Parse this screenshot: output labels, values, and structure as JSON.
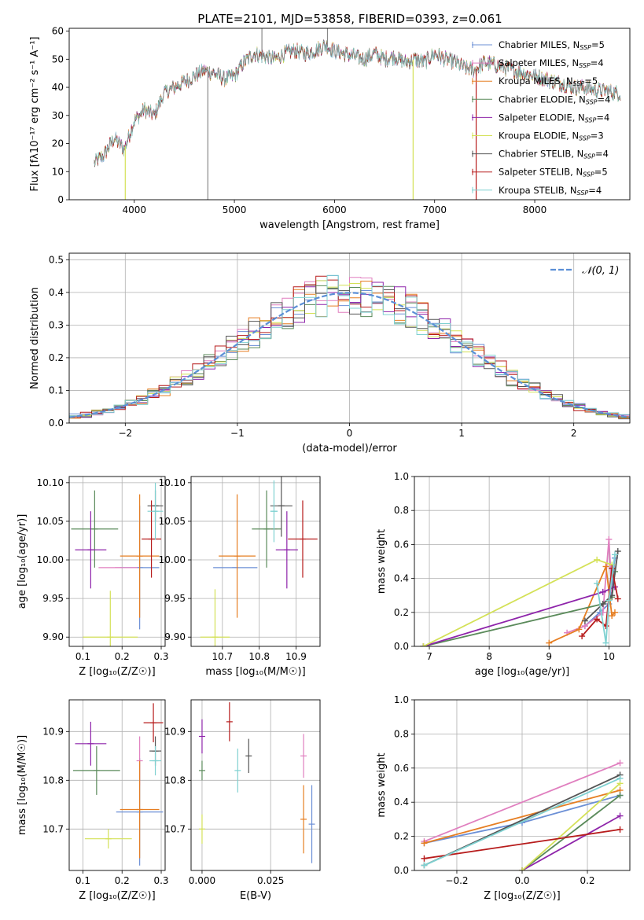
{
  "figure_title": "PLATE=2101, MJD=53858, FIBERID=0393, z=0.061",
  "colors": {
    "Chabrier MILES": "#6b8fd6",
    "Salpeter MILES": "#e07fbf",
    "Kroupa MILES": "#e67e22",
    "Chabrier ELODIE": "#5a8a5a",
    "Salpeter ELODIE": "#8e24aa",
    "Kroupa ELODIE": "#d4e157",
    "Chabrier STELIB": "#555555",
    "Salpeter STELIB": "#b71c1c",
    "Kroupa STELIB": "#7fd1d1",
    "gaussian": "#5b8fd6",
    "grid": "#b0b0b0"
  },
  "chart_data": [
    {
      "id": "spectrum",
      "type": "line",
      "title": "PLATE=2101, MJD=53858, FIBERID=0393, z=0.061",
      "xlabel": "wavelength [Angstrom, rest frame]",
      "ylabel": "Flux [fλ10⁻¹⁷ erg cm⁻² s⁻¹ A⁻¹]",
      "xlim": [
        3350,
        8950
      ],
      "ylim": [
        0,
        61
      ],
      "xticks": [
        4000,
        5000,
        6000,
        7000,
        8000
      ],
      "yticks": [
        0,
        10,
        20,
        30,
        40,
        50,
        60
      ],
      "grid": false,
      "legend": "top-right",
      "spectrum_anchor_x": [
        3600,
        3700,
        3800,
        3900,
        4000,
        4100,
        4200,
        4300,
        4400,
        4500,
        4600,
        4700,
        4800,
        4900,
        5000,
        5100,
        5200,
        5300,
        5400,
        5500,
        5600,
        5700,
        5800,
        5900,
        6000,
        6100,
        6200,
        6300,
        6400,
        6500,
        6600,
        6700,
        6800,
        6900,
        7000,
        7100,
        7200,
        7300,
        7400,
        7500,
        7600,
        7700,
        7800,
        7900,
        8000,
        8100,
        8200,
        8300,
        8400,
        8500,
        8600,
        8700,
        8800,
        8860
      ],
      "spectrum_anchor_y": [
        13,
        16,
        22,
        18,
        28,
        32,
        30,
        38,
        40,
        42,
        44,
        46,
        45,
        43,
        44,
        49,
        52,
        51,
        50,
        52,
        53,
        52,
        53,
        55,
        53,
        52,
        51,
        50,
        52,
        50,
        51,
        49,
        50,
        49,
        52,
        50,
        49,
        47,
        46,
        49,
        48,
        47,
        46,
        45,
        44,
        43,
        42,
        41,
        40,
        40,
        39,
        39,
        38,
        38
      ],
      "spikes": [
        {
          "x": 4735,
          "color": "#888888"
        },
        {
          "x": 5275,
          "color": "#888888",
          "up": true
        },
        {
          "x": 5930,
          "color": "#888888",
          "up": true
        },
        {
          "x": 6785,
          "color": "#d4e157"
        },
        {
          "x": 7415,
          "color": "#b71c1c"
        },
        {
          "x": 3910,
          "color": "#d4e157"
        }
      ],
      "series": [
        {
          "name": "Chabrier MILES, N_SSP=5",
          "label": "Chabrier MILES, N",
          "sub": "SSP",
          "tail": "=5",
          "key": "Chabrier MILES"
        },
        {
          "name": "Salpeter MILES, N_SSP=4",
          "label": "Salpeter MILES, N",
          "sub": "SSP",
          "tail": "=4",
          "key": "Salpeter MILES"
        },
        {
          "name": "Kroupa MILES, N_SSP=5",
          "label": "Kroupa MILES, N",
          "sub": "SSP",
          "tail": "=5",
          "key": "Kroupa MILES"
        },
        {
          "name": "Chabrier ELODIE, N_SSP=4",
          "label": "Chabrier ELODIE, N",
          "sub": "SSP",
          "tail": "=4",
          "key": "Chabrier ELODIE"
        },
        {
          "name": "Salpeter ELODIE, N_SSP=4",
          "label": "Salpeter ELODIE, N",
          "sub": "SSP",
          "tail": "=4",
          "key": "Salpeter ELODIE"
        },
        {
          "name": "Kroupa ELODIE, N_SSP=3",
          "label": "Kroupa ELODIE, N",
          "sub": "SSP",
          "tail": "=3",
          "key": "Kroupa ELODIE"
        },
        {
          "name": "Chabrier STELIB, N_SSP=4",
          "label": "Chabrier STELIB, N",
          "sub": "SSP",
          "tail": "=4",
          "key": "Chabrier STELIB"
        },
        {
          "name": "Salpeter STELIB, N_SSP=5",
          "label": "Salpeter STELIB, N",
          "sub": "SSP",
          "tail": "=5",
          "key": "Salpeter STELIB"
        },
        {
          "name": "Kroupa STELIB, N_SSP=4",
          "label": "Kroupa STELIB, N",
          "sub": "SSP",
          "tail": "=4",
          "key": "Kroupa STELIB"
        }
      ]
    },
    {
      "id": "residuals",
      "type": "line",
      "xlabel": "(data-model)/error",
      "ylabel": "Normed distribution",
      "xlim": [
        -2.5,
        2.5
      ],
      "ylim": [
        0,
        0.52
      ],
      "xticks": [
        -2,
        -1,
        0,
        1,
        2
      ],
      "yticks": [
        0.0,
        0.1,
        0.2,
        0.3,
        0.4,
        0.5
      ],
      "grid": true,
      "legend": "top-right",
      "legend_label": "𝒩(0, 1)",
      "bin_width": 0.1,
      "bin_start": -2.5,
      "histograms_note": "step histograms for the 9 models (approximated from the figure)",
      "gaussian": {
        "mean": 0,
        "sigma": 1
      }
    },
    {
      "id": "age_vs_Z",
      "type": "scatter",
      "xlabel": "Z [log₁₀(Z/Z☉)]",
      "ylabel": "age  [log₁₀(age/yr)]",
      "xlim": [
        0.065,
        0.31
      ],
      "ylim": [
        9.888,
        10.108
      ],
      "xticks": [
        0.1,
        0.2,
        0.3
      ],
      "yticks": [
        9.9,
        9.95,
        10.0,
        10.05,
        10.1
      ],
      "grid": true,
      "points": [
        {
          "key": "Chabrier MILES",
          "x": 0.245,
          "y": 9.99,
          "xerr": 0.05,
          "yerr": 0.08
        },
        {
          "key": "Salpeter MILES",
          "x": 0.19,
          "y": 9.99,
          "xerr": 0.05,
          "yerr": 0.0
        },
        {
          "key": "Kroupa MILES",
          "x": 0.245,
          "y": 10.005,
          "xerr": 0.05,
          "yerr": 0.08
        },
        {
          "key": "Chabrier ELODIE",
          "x": 0.13,
          "y": 10.04,
          "xerr": 0.06,
          "yerr": 0.05
        },
        {
          "key": "Salpeter ELODIE",
          "x": 0.12,
          "y": 10.013,
          "xerr": 0.04,
          "yerr": 0.05
        },
        {
          "key": "Kroupa ELODIE",
          "x": 0.17,
          "y": 9.9,
          "xerr": 0.07,
          "yerr": 0.06
        },
        {
          "key": "Chabrier STELIB",
          "x": 0.285,
          "y": 10.07,
          "xerr": 0.02,
          "yerr": 0.02
        },
        {
          "key": "Salpeter STELIB",
          "x": 0.275,
          "y": 10.027,
          "xerr": 0.025,
          "yerr": 0.05
        },
        {
          "key": "Kroupa STELIB",
          "x": 0.285,
          "y": 10.063,
          "xerr": 0.02,
          "yerr": 0.037
        }
      ]
    },
    {
      "id": "age_vs_mass",
      "type": "scatter",
      "xlabel": "mass [log₁₀(M/M☉)]",
      "ylabel": "",
      "xlim": [
        10.615,
        10.965
      ],
      "ylim": [
        9.888,
        10.108
      ],
      "xticks": [
        10.7,
        10.8,
        10.9
      ],
      "yticks": [
        9.9,
        9.95,
        10.0,
        10.05,
        10.1
      ],
      "grid": true,
      "points": [
        {
          "key": "Chabrier MILES",
          "x": 10.735,
          "y": 9.99,
          "xerr": 0.06,
          "yerr": 0.0
        },
        {
          "key": "Salpeter MILES",
          "x": 10.84,
          "y": 10.04,
          "xerr": 0.0,
          "yerr": 0.0
        },
        {
          "key": "Kroupa MILES",
          "x": 10.74,
          "y": 10.005,
          "xerr": 0.05,
          "yerr": 0.08
        },
        {
          "key": "Chabrier ELODIE",
          "x": 10.82,
          "y": 10.04,
          "xerr": 0.04,
          "yerr": 0.05
        },
        {
          "key": "Salpeter ELODIE",
          "x": 10.875,
          "y": 10.013,
          "xerr": 0.03,
          "yerr": 0.05
        },
        {
          "key": "Kroupa ELODIE",
          "x": 10.68,
          "y": 9.9,
          "xerr": 0.04,
          "yerr": 0.062
        },
        {
          "key": "Chabrier STELIB",
          "x": 10.86,
          "y": 10.07,
          "xerr": 0.03,
          "yerr": 0.04
        },
        {
          "key": "Salpeter STELIB",
          "x": 10.918,
          "y": 10.027,
          "xerr": 0.04,
          "yerr": 0.05
        },
        {
          "key": "Kroupa STELIB",
          "x": 10.84,
          "y": 10.063,
          "xerr": 0.01,
          "yerr": 0.04
        }
      ]
    },
    {
      "id": "weight_vs_age",
      "type": "line",
      "xlabel": "age  [log₁₀(age/yr)]",
      "ylabel": "mass weight",
      "xlim": [
        6.75,
        10.35
      ],
      "ylim": [
        0,
        1.0
      ],
      "xticks": [
        7,
        8,
        9,
        10
      ],
      "yticks": [
        0.0,
        0.2,
        0.4,
        0.6,
        0.8,
        1.0
      ],
      "grid": true,
      "series": [
        {
          "key": "Chabrier MILES",
          "x": [
            9.6,
            9.85,
            10.0,
            10.05,
            10.1
          ],
          "y": [
            0.12,
            0.2,
            0.25,
            0.35,
            0.52
          ]
        },
        {
          "key": "Salpeter MILES",
          "x": [
            9.3,
            9.6,
            9.9,
            10.0,
            10.05
          ],
          "y": [
            0.08,
            0.12,
            0.2,
            0.63,
            0.3
          ]
        },
        {
          "key": "Kroupa MILES",
          "x": [
            9.0,
            9.5,
            9.95,
            10.05,
            10.1
          ],
          "y": [
            0.02,
            0.1,
            0.47,
            0.18,
            0.2
          ]
        },
        {
          "key": "Chabrier ELODIE",
          "x": [
            6.9,
            9.9,
            10.05,
            10.1
          ],
          "y": [
            0.0,
            0.25,
            0.29,
            0.44
          ]
        },
        {
          "key": "Salpeter ELODIE",
          "x": [
            6.9,
            9.9,
            10.1
          ],
          "y": [
            0.0,
            0.32,
            0.35
          ]
        },
        {
          "key": "Kroupa ELODIE",
          "x": [
            6.9,
            9.8,
            10.05
          ],
          "y": [
            0.0,
            0.51,
            0.48
          ]
        },
        {
          "key": "Chabrier STELIB",
          "x": [
            9.6,
            9.9,
            10.05,
            10.15
          ],
          "y": [
            0.15,
            0.25,
            0.3,
            0.56
          ]
        },
        {
          "key": "Salpeter STELIB",
          "x": [
            9.55,
            9.8,
            9.95,
            10.05,
            10.15
          ],
          "y": [
            0.06,
            0.16,
            0.12,
            0.46,
            0.28
          ]
        },
        {
          "key": "Kroupa STELIB",
          "x": [
            9.8,
            9.95,
            10.0,
            10.1
          ],
          "y": [
            0.37,
            0.02,
            0.27,
            0.54
          ]
        }
      ]
    },
    {
      "id": "mass_vs_Z",
      "type": "scatter",
      "xlabel": "Z [log₁₀(Z/Z☉)]",
      "ylabel": "mass [log₁₀(M/M☉)]",
      "xlim": [
        0.065,
        0.31
      ],
      "ylim": [
        10.615,
        10.965
      ],
      "xticks": [
        0.1,
        0.2,
        0.3
      ],
      "yticks": [
        10.7,
        10.8,
        10.9
      ],
      "grid": true,
      "points": [
        {
          "key": "Chabrier MILES",
          "x": 0.245,
          "y": 10.735,
          "xerr": 0.06,
          "yerr": 0.11
        },
        {
          "key": "Salpeter MILES",
          "x": 0.245,
          "y": 10.84,
          "xerr": 0.0,
          "yerr": 0.05
        },
        {
          "key": "Kroupa MILES",
          "x": 0.245,
          "y": 10.74,
          "xerr": 0.05,
          "yerr": 0.1
        },
        {
          "key": "Chabrier ELODIE",
          "x": 0.135,
          "y": 10.82,
          "xerr": 0.06,
          "yerr": 0.05
        },
        {
          "key": "Salpeter ELODIE",
          "x": 0.12,
          "y": 10.875,
          "xerr": 0.04,
          "yerr": 0.045
        },
        {
          "key": "Kroupa ELODIE",
          "x": 0.165,
          "y": 10.68,
          "xerr": 0.06,
          "yerr": 0.02
        },
        {
          "key": "Chabrier STELIB",
          "x": 0.285,
          "y": 10.86,
          "xerr": 0.015,
          "yerr": 0.03
        },
        {
          "key": "Salpeter STELIB",
          "x": 0.28,
          "y": 10.918,
          "xerr": 0.025,
          "yerr": 0.04
        },
        {
          "key": "Kroupa STELIB",
          "x": 0.285,
          "y": 10.84,
          "xerr": 0.015,
          "yerr": 0.03
        }
      ]
    },
    {
      "id": "mass_vs_ebv",
      "type": "scatter",
      "xlabel": "E(B-V)",
      "ylabel": "",
      "xlim": [
        -0.004,
        0.043
      ],
      "ylim": [
        10.615,
        10.965
      ],
      "xticks": [
        0.0,
        0.025
      ],
      "xticklabels": [
        "0.000",
        "0.025"
      ],
      "yticks": [
        10.7,
        10.8,
        10.9
      ],
      "grid": true,
      "points": [
        {
          "key": "Chabrier MILES",
          "x": 0.04,
          "y": 10.71,
          "xerr": 0.0,
          "yerr": 0.08
        },
        {
          "key": "Salpeter MILES",
          "x": 0.037,
          "y": 10.85,
          "xerr": 0.0,
          "yerr": 0.045
        },
        {
          "key": "Kroupa MILES",
          "x": 0.037,
          "y": 10.72,
          "xerr": 0.0,
          "yerr": 0.07
        },
        {
          "key": "Chabrier ELODIE",
          "x": 0.0,
          "y": 10.82,
          "xerr": 0.0,
          "yerr": 0.02
        },
        {
          "key": "Salpeter ELODIE",
          "x": 0.0,
          "y": 10.89,
          "xerr": 0.0,
          "yerr": 0.035
        },
        {
          "key": "Kroupa ELODIE",
          "x": 0.0,
          "y": 10.7,
          "xerr": 0.0,
          "yerr": 0.03
        },
        {
          "key": "Chabrier STELIB",
          "x": 0.017,
          "y": 10.85,
          "xerr": 0.0,
          "yerr": 0.035
        },
        {
          "key": "Salpeter STELIB",
          "x": 0.01,
          "y": 10.92,
          "xerr": 0.0,
          "yerr": 0.04
        },
        {
          "key": "Kroupa STELIB",
          "x": 0.013,
          "y": 10.82,
          "xerr": 0.0,
          "yerr": 0.045
        }
      ]
    },
    {
      "id": "weight_vs_Z",
      "type": "line",
      "xlabel": "Z [log₁₀(Z/Z☉)]",
      "ylabel": "mass weight",
      "xlim": [
        -0.33,
        0.33
      ],
      "ylim": [
        0,
        1.0
      ],
      "xticks": [
        -0.2,
        0.0,
        0.2
      ],
      "xticklabels": [
        "−0.2",
        "0.0",
        "0.2"
      ],
      "yticks": [
        0.0,
        0.2,
        0.4,
        0.6,
        0.8,
        1.0
      ],
      "grid": true,
      "series": [
        {
          "key": "Chabrier MILES",
          "x": [
            -0.3,
            0.0,
            0.3
          ],
          "y": [
            0.16,
            0.28,
            0.44
          ]
        },
        {
          "key": "Salpeter MILES",
          "x": [
            -0.3,
            0.3
          ],
          "y": [
            0.17,
            0.63
          ]
        },
        {
          "key": "Kroupa MILES",
          "x": [
            -0.3,
            0.3
          ],
          "y": [
            0.16,
            0.47
          ]
        },
        {
          "key": "Chabrier ELODIE",
          "x": [
            0.0,
            0.3
          ],
          "y": [
            0.0,
            0.44
          ]
        },
        {
          "key": "Salpeter ELODIE",
          "x": [
            0.0,
            0.3
          ],
          "y": [
            0.0,
            0.32
          ]
        },
        {
          "key": "Kroupa ELODIE",
          "x": [
            0.0,
            0.3
          ],
          "y": [
            0.0,
            0.51
          ]
        },
        {
          "key": "Chabrier STELIB",
          "x": [
            -0.3,
            0.3
          ],
          "y": [
            0.03,
            0.56
          ]
        },
        {
          "key": "Salpeter STELIB",
          "x": [
            -0.3,
            0.3
          ],
          "y": [
            0.07,
            0.24
          ]
        },
        {
          "key": "Kroupa STELIB",
          "x": [
            -0.3,
            0.3
          ],
          "y": [
            0.03,
            0.54
          ]
        }
      ]
    }
  ]
}
